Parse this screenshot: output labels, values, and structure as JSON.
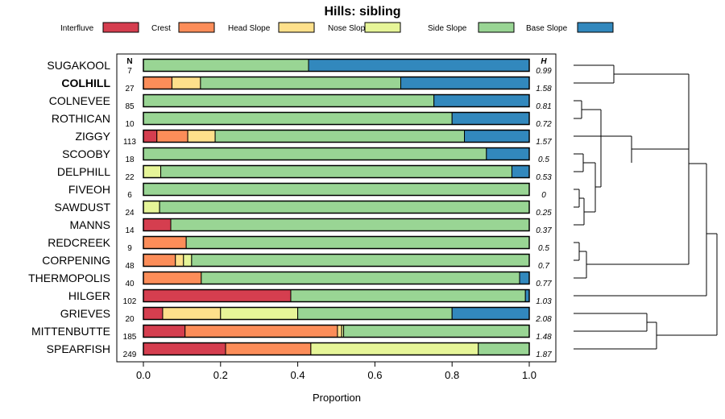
{
  "chart_data": {
    "type": "bar",
    "orientation": "horizontal-stacked",
    "title": "Hills: sibling",
    "xlabel": "Proportion",
    "xlim": [
      0,
      1
    ],
    "x_ticks": [
      0.0,
      0.2,
      0.4,
      0.6,
      0.8,
      1.0
    ],
    "x_tick_labels": [
      "0.0",
      "0.2",
      "0.4",
      "0.6",
      "0.8",
      "1.0"
    ],
    "n_header": "N",
    "h_header": "H",
    "highlight": "COLHILL",
    "legend": [
      {
        "name": "Interfluve",
        "color": "#d53e4f"
      },
      {
        "name": "Crest",
        "color": "#fc8d59"
      },
      {
        "name": "Head Slope",
        "color": "#fee08b"
      },
      {
        "name": "Nose Slope",
        "color": "#e6f598"
      },
      {
        "name": "Side Slope",
        "color": "#99d594"
      },
      {
        "name": "Base Slope",
        "color": "#3288bd"
      }
    ],
    "rows": [
      {
        "name": "SUGAKOOL",
        "n": "7",
        "h": "0.99",
        "values": [
          0,
          0,
          0,
          0,
          0.428,
          0.572
        ]
      },
      {
        "name": "COLHILL",
        "n": "27",
        "h": "1.58",
        "values": [
          0,
          0.074,
          0.074,
          0,
          0.519,
          0.333
        ]
      },
      {
        "name": "COLNEVEE",
        "n": "85",
        "h": "0.81",
        "values": [
          0,
          0,
          0,
          0,
          0.753,
          0.247
        ]
      },
      {
        "name": "ROTHICAN",
        "n": "10",
        "h": "0.72",
        "values": [
          0,
          0,
          0,
          0,
          0.8,
          0.2
        ]
      },
      {
        "name": "ZIGGY",
        "n": "113",
        "h": "1.57",
        "values": [
          0.035,
          0.08,
          0.071,
          0,
          0.646,
          0.168
        ]
      },
      {
        "name": "SCOOBY",
        "n": "18",
        "h": "0.5",
        "values": [
          0,
          0,
          0,
          0,
          0.889,
          0.111
        ]
      },
      {
        "name": "DELPHILL",
        "n": "22",
        "h": "0.53",
        "values": [
          0,
          0,
          0,
          0.045,
          0.91,
          0.045
        ]
      },
      {
        "name": "FIVEOH",
        "n": "6",
        "h": "0",
        "values": [
          0,
          0,
          0,
          0,
          1.0,
          0
        ]
      },
      {
        "name": "SAWDUST",
        "n": "24",
        "h": "0.25",
        "values": [
          0,
          0,
          0,
          0.042,
          0.958,
          0
        ]
      },
      {
        "name": "MANNS",
        "n": "14",
        "h": "0.37",
        "values": [
          0.071,
          0,
          0,
          0,
          0.929,
          0
        ]
      },
      {
        "name": "REDCREEK",
        "n": "9",
        "h": "0.5",
        "values": [
          0,
          0.111,
          0,
          0,
          0.889,
          0
        ]
      },
      {
        "name": "CORPENING",
        "n": "48",
        "h": "0.7",
        "values": [
          0,
          0.083,
          0.021,
          0.021,
          0.875,
          0
        ]
      },
      {
        "name": "THERMOPOLIS",
        "n": "40",
        "h": "0.77",
        "values": [
          0,
          0.15,
          0,
          0,
          0.825,
          0.025
        ]
      },
      {
        "name": "HILGER",
        "n": "102",
        "h": "1.03",
        "values": [
          0.382,
          0,
          0,
          0,
          0.608,
          0.01
        ]
      },
      {
        "name": "GRIEVES",
        "n": "20",
        "h": "2.08",
        "values": [
          0.05,
          0,
          0.15,
          0.2,
          0.4,
          0.2
        ]
      },
      {
        "name": "MITTENBUTTE",
        "n": "185",
        "h": "1.48",
        "values": [
          0.108,
          0.395,
          0.011,
          0.005,
          0.481,
          0
        ]
      },
      {
        "name": "SPEARFISH",
        "n": "249",
        "h": "1.87",
        "values": [
          0.213,
          0.221,
          0,
          0.434,
          0.132,
          0
        ]
      }
    ]
  }
}
